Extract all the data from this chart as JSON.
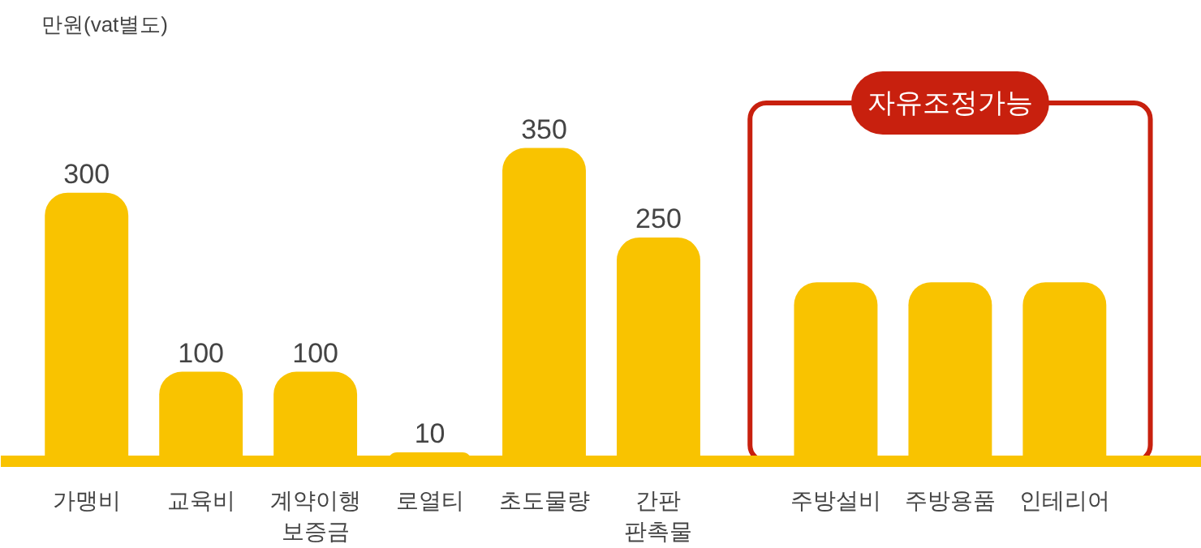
{
  "chart_data": {
    "type": "bar",
    "categories": [
      "가맹비",
      "교육비",
      "계약이행\n보증금",
      "로열티",
      "초도물량",
      "간판\n판촉물",
      "주방설비",
      "주방용품",
      "인테리어"
    ],
    "values": [
      300,
      100,
      100,
      10,
      350,
      250,
      200,
      200,
      200
    ],
    "value_labels": [
      "300",
      "100",
      "100",
      "10",
      "350",
      "250",
      null,
      null,
      null
    ],
    "color": "#f9c300",
    "annotations": [
      "만원(vat별도)",
      "자유조정가능"
    ],
    "grid": false
  }
}
